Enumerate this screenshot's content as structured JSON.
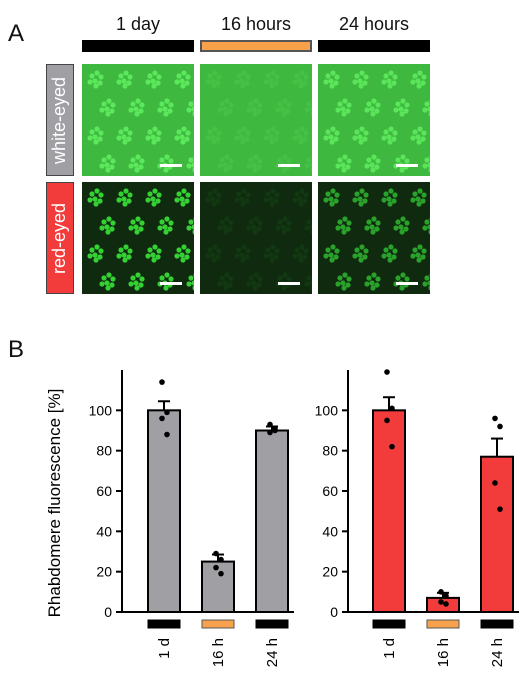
{
  "panels": {
    "a": "A",
    "b": "B"
  },
  "conditions": [
    {
      "label": "1 day",
      "color": "#000000"
    },
    {
      "label": "16 hours",
      "color": "#f7a24a"
    },
    {
      "label": "24 hours",
      "color": "#000000"
    }
  ],
  "rows": [
    {
      "label": "white-eyed",
      "color": "#a0a0a4",
      "tile_bg": "#3fb83f",
      "rhab": "#62f062",
      "rhab_opacity": [
        0.85,
        0.18,
        0.8
      ]
    },
    {
      "label": "red-eyed",
      "color": "#f23c3c",
      "tile_bg": "#0f2a0f",
      "rhab": "#39e239",
      "rhab_opacity": [
        0.9,
        0.08,
        0.65
      ]
    }
  ],
  "chart_data": [
    {
      "type": "bar",
      "title": "",
      "xlabel": "",
      "ylabel": "Rhabdomere fluorescence [%]",
      "ylim": [
        0,
        120
      ],
      "yticks": [
        0,
        20,
        40,
        60,
        80,
        100
      ],
      "categories": [
        "1 d",
        "16 h",
        "24 h"
      ],
      "category_colors": [
        "#000000",
        "#f7a24a",
        "#000000"
      ],
      "bar_color": "#a0a0a4",
      "values": [
        100,
        25,
        90
      ],
      "errors": [
        4.5,
        3.5,
        2
      ],
      "points": [
        [
          114,
          99,
          96,
          88
        ],
        [
          29,
          26,
          22,
          19
        ],
        [
          93,
          91,
          89,
          90
        ]
      ]
    },
    {
      "type": "bar",
      "title": "",
      "xlabel": "",
      "ylabel": "",
      "ylim": [
        0,
        120
      ],
      "yticks": [
        0,
        20,
        40,
        60,
        80,
        100
      ],
      "categories": [
        "1 d",
        "16 h",
        "24 h"
      ],
      "category_colors": [
        "#000000",
        "#f7a24a",
        "#000000"
      ],
      "bar_color": "#f23c3c",
      "values": [
        100,
        7,
        77
      ],
      "errors": [
        6.5,
        2.5,
        9
      ],
      "points": [
        [
          119,
          101,
          95,
          82
        ],
        [
          10,
          8,
          5,
          4
        ],
        [
          96,
          92,
          64,
          51
        ]
      ]
    }
  ]
}
